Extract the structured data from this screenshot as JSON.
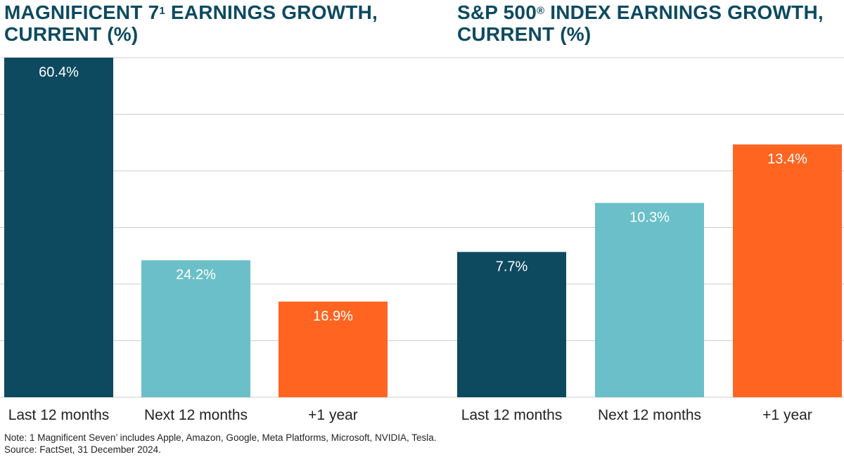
{
  "titles": {
    "left_line1_a": "MAGNIFICENT 7",
    "left_sup": "1",
    "left_line1_b": " EARNINGS GROWTH,",
    "left_line2": "CURRENT (%)",
    "right_line1_a": "S&P 500",
    "right_sup": "®",
    "right_line1_b": "  INDEX EARNINGS GROWTH,",
    "right_line2": "CURRENT (%)"
  },
  "colors": {
    "dark": "#0d4a60",
    "light": "#6bbfc8",
    "orange": "#ff6521",
    "grid": "#cccccc",
    "axis_text": "#222222",
    "label_text": "#ffffff"
  },
  "chart_data": [
    {
      "type": "bar",
      "title": "MAGNIFICENT 7¹ EARNINGS GROWTH, CURRENT (%)",
      "categories": [
        "Last 12 months",
        "Next 12 months",
        "+1 year"
      ],
      "values": [
        60.4,
        24.2,
        16.9
      ],
      "data_labels": [
        "60.4%",
        "24.2%",
        "16.9%"
      ],
      "bar_colors": [
        "#0d4a60",
        "#6bbfc8",
        "#ff6521"
      ],
      "ylim": [
        0,
        60
      ],
      "grid": true
    },
    {
      "type": "bar",
      "title": "S&P 500® INDEX EARNINGS GROWTH, CURRENT (%)",
      "categories": [
        "Last 12 months",
        "Next 12 months",
        "+1 year"
      ],
      "values": [
        7.7,
        10.3,
        13.4
      ],
      "data_labels": [
        "7.7%",
        "10.3%",
        "13.4%"
      ],
      "bar_colors": [
        "#0d4a60",
        "#6bbfc8",
        "#ff6521"
      ],
      "ylim": [
        0,
        18
      ],
      "grid": true
    }
  ],
  "notes": {
    "note": "Note: 1 Magnificent Seven’ includes Apple, Amazon, Google, Meta Platforms, Microsoft, NVIDIA, Tesla.",
    "source": "Source: FactSet, 31 December 2024."
  }
}
